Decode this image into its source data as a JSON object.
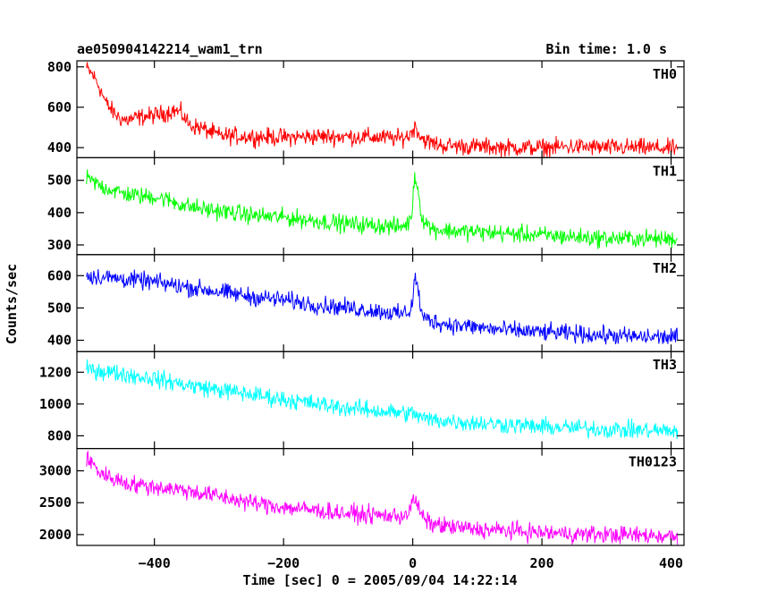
{
  "chart_data": {
    "type": "line",
    "title": "ae050904142214_wam1_trn",
    "subtitle": "Bin time: 1.0 s",
    "xlabel": "Time [sec] 0 = 2005/09/04 14:22:14",
    "ylabel": "Counts/sec",
    "xlim": [
      -520,
      420
    ],
    "xticks": [
      -400,
      -200,
      0,
      200,
      400
    ],
    "grid": false,
    "legend": "none",
    "series": [
      {
        "name": "TH0",
        "color": "#ff0000",
        "ylim": [
          350,
          830
        ],
        "yticks": [
          400,
          600,
          800
        ],
        "x": [
          -505,
          -495,
          -485,
          -475,
          -465,
          -455,
          -445,
          -430,
          -415,
          -400,
          -385,
          -370,
          -358,
          -345,
          -330,
          -300,
          -250,
          -200,
          -150,
          -100,
          -50,
          -20,
          -5,
          0,
          5,
          12,
          25,
          50,
          100,
          150,
          200,
          250,
          300,
          350,
          410
        ],
        "y": [
          790,
          760,
          700,
          620,
          580,
          550,
          535,
          545,
          555,
          560,
          570,
          585,
          570,
          510,
          500,
          460,
          455,
          450,
          455,
          455,
          450,
          445,
          460,
          490,
          505,
          455,
          425,
          410,
          405,
          400,
          400,
          405,
          400,
          400,
          395
        ]
      },
      {
        "name": "TH1",
        "color": "#00ff00",
        "ylim": [
          270,
          570
        ],
        "yticks": [
          300,
          400,
          500
        ],
        "x": [
          -505,
          -480,
          -450,
          -420,
          -400,
          -380,
          -350,
          -320,
          -280,
          -240,
          -200,
          -150,
          -100,
          -50,
          -20,
          -5,
          0,
          3,
          8,
          15,
          30,
          50,
          100,
          150,
          200,
          250,
          300,
          350,
          410
        ],
        "y": [
          505,
          480,
          460,
          450,
          450,
          440,
          420,
          410,
          400,
          390,
          385,
          375,
          365,
          360,
          355,
          370,
          420,
          525,
          470,
          380,
          350,
          345,
          340,
          335,
          330,
          325,
          320,
          320,
          318
        ]
      },
      {
        "name": "TH2",
        "color": "#0000ff",
        "ylim": [
          365,
          665
        ],
        "yticks": [
          400,
          500,
          600
        ],
        "x": [
          -505,
          -450,
          -400,
          -350,
          -300,
          -250,
          -200,
          -150,
          -100,
          -50,
          -20,
          -5,
          0,
          3,
          8,
          15,
          30,
          50,
          100,
          150,
          200,
          250,
          300,
          350,
          410
        ],
        "y": [
          600,
          590,
          580,
          565,
          550,
          535,
          525,
          510,
          500,
          490,
          480,
          490,
          520,
          600,
          560,
          470,
          460,
          450,
          440,
          430,
          425,
          420,
          415,
          410,
          410
        ]
      },
      {
        "name": "TH3",
        "color": "#00ffff",
        "ylim": [
          720,
          1330
        ],
        "yticks": [
          800,
          1000,
          1200
        ],
        "x": [
          -505,
          -450,
          -400,
          -350,
          -300,
          -250,
          -200,
          -150,
          -100,
          -50,
          0,
          20,
          50,
          100,
          150,
          200,
          250,
          300,
          350,
          410
        ],
        "y": [
          1220,
          1190,
          1160,
          1120,
          1090,
          1060,
          1030,
          1000,
          975,
          955,
          940,
          905,
          895,
          880,
          870,
          855,
          850,
          840,
          835,
          830
        ]
      },
      {
        "name": "TH0123",
        "color": "#ff00ff",
        "ylim": [
          1830,
          3350
        ],
        "yticks": [
          2000,
          2500,
          3000
        ],
        "x": [
          -505,
          -495,
          -485,
          -470,
          -455,
          -440,
          -420,
          -400,
          -380,
          -350,
          -300,
          -250,
          -200,
          -150,
          -100,
          -50,
          -20,
          -5,
          0,
          4,
          12,
          25,
          50,
          100,
          150,
          200,
          250,
          300,
          350,
          410
        ],
        "y": [
          3180,
          3100,
          2980,
          2900,
          2850,
          2800,
          2770,
          2750,
          2730,
          2690,
          2600,
          2500,
          2430,
          2380,
          2330,
          2300,
          2290,
          2350,
          2520,
          2560,
          2320,
          2180,
          2130,
          2080,
          2060,
          2030,
          2010,
          2000,
          1990,
          1975
        ]
      }
    ]
  }
}
